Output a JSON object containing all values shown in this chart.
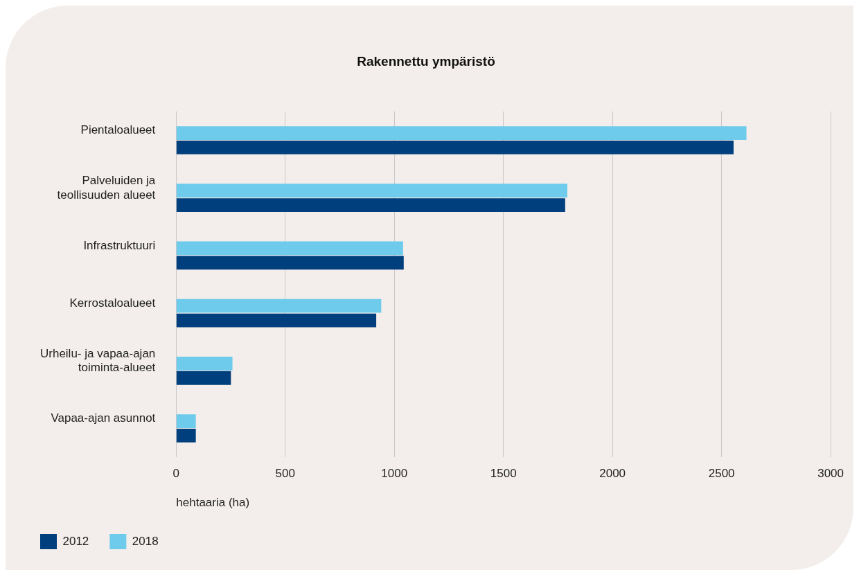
{
  "chart_data": {
    "type": "bar",
    "orientation": "horizontal",
    "title": "Rakennettu ympäristö",
    "xlabel": "hehtaaria (ha)",
    "categories": [
      "Pientaloalueet",
      "Palveluiden ja teollisuuden alueet",
      "Infrastruktuuri",
      "Kerrostaloalueet",
      "Urheilu- ja vapaa-ajan toiminta-alueet",
      "Vapaa-ajan asunnot"
    ],
    "series": [
      {
        "name": "2012",
        "color": "#003f7d",
        "values": [
          2555,
          1783,
          1043,
          917,
          251,
          90
        ]
      },
      {
        "name": "2018",
        "color": "#6ecbec",
        "values": [
          2614,
          1793,
          1040,
          940,
          258,
          90
        ]
      }
    ],
    "xlim": [
      0,
      3000
    ],
    "xticks": [
      0,
      500,
      1000,
      1500,
      2000,
      2500,
      3000
    ],
    "grid": "x",
    "legend": "bottom left"
  }
}
